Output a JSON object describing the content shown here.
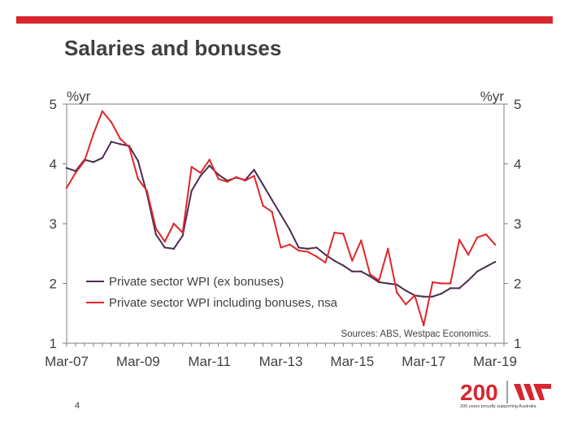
{
  "title": "Salaries and bonuses",
  "page_number": "4",
  "footer": {
    "logo_text": "200",
    "tagline": "200 years proudly supporting Australia"
  },
  "colors": {
    "accent": "#d8262e",
    "series1": "#4b2d4f",
    "series2": "#e0262a"
  },
  "chart_data": {
    "type": "line",
    "title": "",
    "ylabel_left": "%yr",
    "ylabel_right": "%yr",
    "ylim": [
      1,
      5
    ],
    "yticks": [
      1,
      2,
      3,
      4,
      5
    ],
    "xlim": [
      0,
      49
    ],
    "x_tick_positions": [
      0,
      8,
      16,
      24,
      32,
      40,
      48
    ],
    "x_tick_labels": [
      "Mar-07",
      "Mar-09",
      "Mar-11",
      "Mar-13",
      "Mar-15",
      "Mar-17",
      "Mar-19"
    ],
    "source": "Sources: ABS, Westpac Economics.",
    "legend_position": "bottom-left",
    "series": [
      {
        "name": "Private sector WPI (ex bonuses)",
        "color": "#4b2d4f",
        "values": [
          3.93,
          3.88,
          4.07,
          4.03,
          4.1,
          4.37,
          4.33,
          4.3,
          4.05,
          3.5,
          2.82,
          2.6,
          2.58,
          2.8,
          3.55,
          3.8,
          3.97,
          3.82,
          3.72,
          3.77,
          3.73,
          3.9,
          3.65,
          3.4,
          3.15,
          2.9,
          2.6,
          2.58,
          2.6,
          2.48,
          2.38,
          2.3,
          2.2,
          2.2,
          2.12,
          2.02,
          2.0,
          1.98,
          1.88,
          1.8,
          1.78,
          1.78,
          1.83,
          1.92,
          1.92,
          2.05,
          2.2,
          2.28,
          2.36
        ]
      },
      {
        "name": "Private sector WPI including bonuses, nsa",
        "color": "#e0262a",
        "values": [
          3.6,
          3.85,
          4.05,
          4.5,
          4.88,
          4.7,
          4.42,
          4.28,
          3.75,
          3.55,
          2.92,
          2.7,
          3.0,
          2.85,
          3.95,
          3.85,
          4.07,
          3.75,
          3.7,
          3.78,
          3.72,
          3.8,
          3.3,
          3.2,
          2.6,
          2.65,
          2.55,
          2.53,
          2.45,
          2.35,
          2.85,
          2.83,
          2.38,
          2.72,
          2.15,
          2.05,
          2.58,
          1.85,
          1.65,
          1.8,
          1.3,
          2.02,
          2.0,
          2.0,
          2.73,
          2.48,
          2.77,
          2.82,
          2.65
        ]
      }
    ]
  }
}
